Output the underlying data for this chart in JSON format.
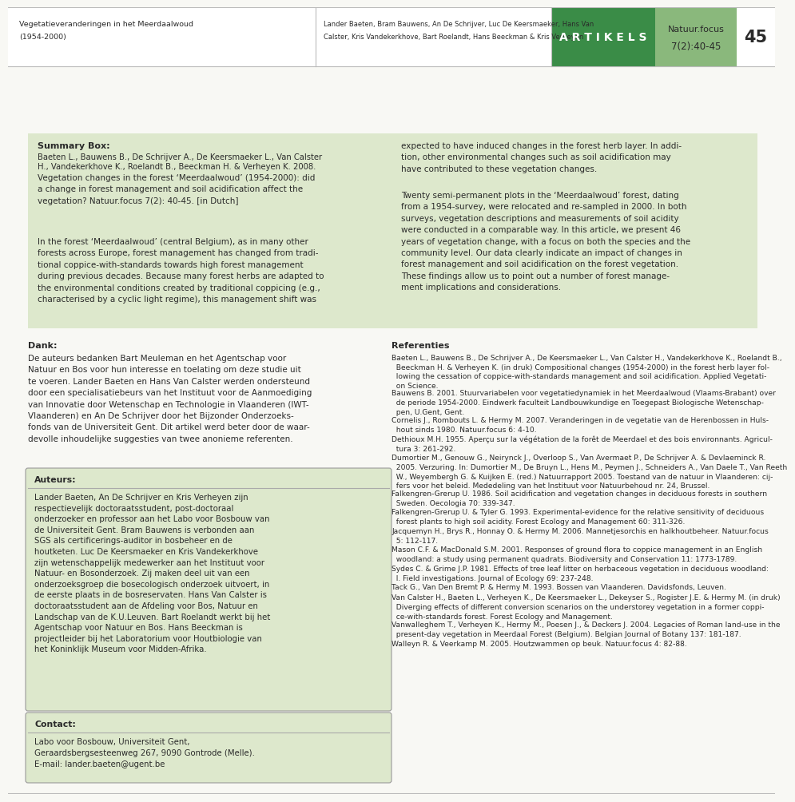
{
  "page_bg": "#f8f8f4",
  "header_bg": "#ffffff",
  "green_dark": "#3a8c47",
  "green_light": "#8ab87c",
  "green_pale": "#dde8cc",
  "green_pale2": "#dde8cc",
  "text_dark": "#2a2a2a",
  "header_left_line1": "Vegetatieveranderingen in het Meerdaalwoud",
  "header_left_line2": "(1954-2000)",
  "header_mid_line1": "Lander Baeten, Bram Bauwens, An De Schrijver, Luc De Keersmaeker, Hans Van",
  "header_mid_line2": "Calster, Kris Vandekerkhove, Bart Roelandt, Hans Beeckman & Kris Verheyen",
  "header_artikels": "A R T I K E L S",
  "header_natuur_line1": "Natuur.focus",
  "header_natuur_line2": "7(2):40-45",
  "header_page": "45",
  "summary_title": "Summary Box:",
  "summary_ref_sc": "Baeten L., Bauwens B., De Schrijver A., De Keersmaeker L., Van Calster",
  "summary_ref_sc2": "H., Vandekerkhove K., Roelandt B., Beeckman H. & Verheyen K. 2008.",
  "summary_ref_body": "Vegetation changes in the forest ‘Meerdaalwoud’ (1954-2000): did\na change in forest management and soil acidification affect the\nvegetation? Natuur.focus 7(2): 40-45. [in Dutch]",
  "summary_left_body": "In the forest ‘Meerdaalwoud’ (central Belgium), as in many other\nforests across Europe, forest management has changed from tradi-\ntional coppice-with-standards towards high forest management\nduring previous decades. Because many forest herbs are adapted to\nthe environmental conditions created by traditional coppicing (e.g.,\ncharacterised by a cyclic light regime), this management shift was",
  "summary_right_body1": "expected to have induced changes in the forest herb layer. In addi-\ntion, other environmental changes such as soil acidification may\nhave contributed to these vegetation changes.",
  "summary_right_body2": "Twenty semi-permanent plots in the ‘Meerdaalwoud’ forest, dating\nfrom a 1954-survey, were relocated and re-sampled in 2000. In both\nsurveys, vegetation descriptions and measurements of soil acidity\nwere conducted in a comparable way. In this article, we present 46\nyears of vegetation change, with a focus on both the species and the\ncommunity level. Our data clearly indicate an impact of changes in\nforest management and soil acidification on the forest vegetation.\nThese findings allow us to point out a number of forest manage-\nment implications and considerations.",
  "dank_title": "Dank:",
  "dank_body": "De auteurs bedanken Bart Meuleman en het Agentschap voor\nNatuur en Bos voor hun interesse en toelating om deze studie uit\nte voeren. Lander Baeten en Hans Van Calster werden ondersteund\ndoor een specialisatiebeurs van het Instituut voor de Aanmoediging\nvan Innovatie door Wetenschap en Technologie in Vlaanderen (IWT-\nVlaanderen) en An De Schrijver door het Bijzonder Onderzoeks-\nfonds van de Universiteit Gent. Dit artikel werd beter door de waar-\ndevolle inhoudelijke suggesties van twee anonieme referenten.",
  "auteurs_title": "Auteurs:",
  "auteurs_body": "Lander Baeten, An De Schrijver en Kris Verheyen zijn\nrespectievelijk doctoraatsstudent, post-doctoraal\nonderzoeker en professor aan het Labo voor Bosbouw van\nde Universiteit Gent. Bram Bauwens is verbonden aan\nSGS als certificerings-auditor in bosbeheer en de\nhoutketen. Luc De Keersmaeker en Kris Vandekerkhove\nzijn wetenschappelijk medewerker aan het Instituut voor\nNatuur- en Bosonderzoek. Zij maken deel uit van een\nonderzoeksgroep die bosecologisch onderzoek uitvoert, in\nde eerste plaats in de bosreservaten. Hans Van Calster is\ndoctoraatsstudent aan de Afdeling voor Bos, Natuur en\nLandschap van de K.U.Leuven. Bart Roelandt werkt bij het\nAgentschap voor Natuur en Bos. Hans Beeckman is\nprojectleider bij het Laboratorium voor Houtbiologie van\nhet Koninklijk Museum voor Midden-Afrika.",
  "contact_title": "Contact:",
  "contact_body": "Labo voor Bosbouw, Universiteit Gent,\nGeraardsbergsesteenweg 267, 9090 Gontrode (Melle).\nE-mail: lander.baeten@ugent.be",
  "ref_title": "Referenties",
  "references": [
    "Baeten L., Bauwens B., De Schrijver A., De Keersmaeker L., Van Calster H., Vandekerkhove K., Roelandt B.,\n  Beeckman H. & Verheyen K. (in druk) Compositional changes (1954-2000) in the forest herb layer fol-\n  lowing the cessation of coppice-with-standards management and soil acidification. Applied Vegetati-\n  on Science.",
    "Bauwens B. 2001. Stuurvariabelen voor vegetatiedynamiek in het Meerdaalwoud (Vlaams-Brabant) over\n  de periode 1954-2000. Eindwerk faculteit Landbouwkundige en Toegepast Biologische Wetenschap-\n  pen, U.Gent, Gent.",
    "Cornelis J., Rombouts L. & Hermy M. 2007. Veranderingen in de vegetatie van de Herenbossen in Huls-\n  hout sinds 1980. Natuur.focus 6: 4-10.",
    "Dethioux M.H. 1955. Aperçu sur la végétation de la forêt de Meerdael et des bois environnants. Agricul-\n  tura 3: 261-292.",
    "Dumortier M., Genouw G., Neirynck J., Overloop S., Van Avermaet P., De Schrijver A. & Devlaeminck R.\n  2005. Verzuring. In: Dumortier M., De Bruyn L., Hens M., Peymen J., Schneiders A., Van Daele T., Van Reeth\n  W., Weyembergh G. & Kuijken E. (red.) Natuurrapport 2005. Toestand van de natuur in Vlaanderen: cij-\n  fers voor het beleid. Mededeling van het Instituut voor Natuurbehoud nr. 24, Brussel.",
    "Falkengren-Grerup U. 1986. Soil acidification and vegetation changes in deciduous forests in southern\n  Sweden. Oecologia 70: 339-347.",
    "Falkengren-Grerup U. & Tyler G. 1993. Experimental-evidence for the relative sensitivity of deciduous\n  forest plants to high soil acidity. Forest Ecology and Management 60: 311-326.",
    "Jacquemyn H., Brys R., Honnay O. & Hermy M. 2006. Mannetjesorchis en halkhoutbeheer. Natuur.focus\n  5: 112-117.",
    "Mason C.F. & MacDonald S.M. 2001. Responses of ground flora to coppice management in an English\n  woodland: a study using permanent quadrats. Biodiversity and Conservation 11: 1773-1789.",
    "Sydes C. & Grime J.P. 1981. Effects of tree leaf litter on herbaceous vegetation in deciduous woodland:\n  I. Field investigations. Journal of Ecology 69: 237-248.",
    "Tack G., Van Den Bremt P. & Hermy M. 1993. Bossen van Vlaanderen. Davidsfonds, Leuven.",
    "Van Calster H., Baeten L., Verheyen K., De Keersmaeker L., Dekeyser S., Rogister J.E. & Hermy M. (in druk)\n  Diverging effects of different conversion scenarios on the understorey vegetation in a former coppi-\n  ce-with-standards forest. Forest Ecology and Management.",
    "Vanwalleghem T., Verheyen K., Hermy M., Poesen J., & Deckers J. 2004. Legacies of Roman land-use in the\n  present-day vegetation in Meerdaal Forest (Belgium). Belgian Journal of Botany 137: 181-187.",
    "Walleyn R. & Veerkamp M. 2005. Houtzwammen op beuk. Natuur.focus 4: 82-88."
  ]
}
